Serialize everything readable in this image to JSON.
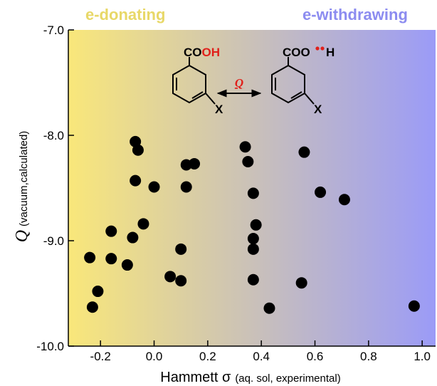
{
  "chart_data": {
    "type": "scatter",
    "title": "",
    "xlabel": "Hammett σ",
    "xlabel_note": "(aq. sol, experimental)",
    "ylabel": "Q",
    "ylabel_note": "(vacuum,calculated)",
    "xlim": [
      -0.32,
      1.05
    ],
    "ylim": [
      -10.0,
      -7.0
    ],
    "x_ticks": [
      -0.2,
      0.0,
      0.2,
      0.4,
      0.6,
      0.8,
      1.0
    ],
    "x_tick_labels": [
      "-0.2",
      "0.0",
      "0.2",
      "0.4",
      "0.6",
      "0.8",
      "1.0"
    ],
    "y_ticks": [
      -7.0,
      -8.0,
      -9.0,
      -10.0
    ],
    "y_tick_labels": [
      "-7.0",
      "-8.0",
      "-9.0",
      "-10.0"
    ],
    "grid": false,
    "legend": "none",
    "background_gradient": [
      "#f9e77a",
      "#9b9bf7"
    ],
    "band_labels": {
      "left": "e-donating",
      "left_color": "#e8d868",
      "right": "e-withdrawing",
      "right_color": "#8c8cf0"
    },
    "annotation": {
      "left_molecule_label_black": "CO",
      "left_molecule_label_red": "OH",
      "right_molecule_label_black": "COO",
      "right_molecule_label_h": "H",
      "substituent_left": "X",
      "substituent_right": "X",
      "arrow_label": "Q",
      "red": "#e0201a"
    },
    "series": [
      {
        "marker_color": "#000000",
        "points": [
          {
            "x": -0.24,
            "y": -9.16
          },
          {
            "x": -0.23,
            "y": -9.63
          },
          {
            "x": -0.21,
            "y": -9.48
          },
          {
            "x": -0.16,
            "y": -8.91
          },
          {
            "x": -0.16,
            "y": -9.17
          },
          {
            "x": -0.1,
            "y": -9.23
          },
          {
            "x": -0.08,
            "y": -8.97
          },
          {
            "x": -0.07,
            "y": -8.06
          },
          {
            "x": -0.07,
            "y": -8.43
          },
          {
            "x": -0.06,
            "y": -8.14
          },
          {
            "x": -0.04,
            "y": -8.84
          },
          {
            "x": 0.0,
            "y": -8.49
          },
          {
            "x": 0.06,
            "y": -9.34
          },
          {
            "x": 0.1,
            "y": -9.08
          },
          {
            "x": 0.1,
            "y": -9.38
          },
          {
            "x": 0.12,
            "y": -8.28
          },
          {
            "x": 0.12,
            "y": -8.49
          },
          {
            "x": 0.15,
            "y": -8.27
          },
          {
            "x": 0.34,
            "y": -8.11
          },
          {
            "x": 0.35,
            "y": -8.25
          },
          {
            "x": 0.37,
            "y": -8.55
          },
          {
            "x": 0.37,
            "y": -8.98
          },
          {
            "x": 0.37,
            "y": -9.08
          },
          {
            "x": 0.37,
            "y": -9.37
          },
          {
            "x": 0.38,
            "y": -8.85
          },
          {
            "x": 0.43,
            "y": -9.64
          },
          {
            "x": 0.55,
            "y": -9.4
          },
          {
            "x": 0.56,
            "y": -8.16
          },
          {
            "x": 0.62,
            "y": -8.54
          },
          {
            "x": 0.71,
            "y": -8.61
          },
          {
            "x": 0.97,
            "y": -9.62
          }
        ]
      }
    ]
  }
}
